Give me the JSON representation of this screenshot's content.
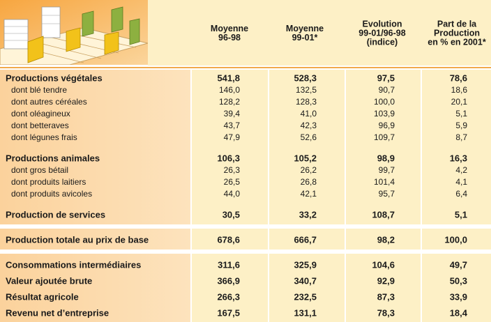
{
  "header": {
    "columns": [
      [
        "Moyenne",
        "96-98"
      ],
      [
        "Moyenne",
        "99-01*"
      ],
      [
        "Evolution",
        "99-01/96-98",
        "(indice)"
      ],
      [
        "Part de la",
        "Production",
        "en % en 2001*"
      ]
    ]
  },
  "table": {
    "sections": [
      {
        "rows": [
          {
            "label": "Productions végétales",
            "values": [
              "541,8",
              "528,3",
              "97,5",
              "78,6"
            ],
            "details": [
              {
                "label": "dont blé tendre",
                "values": [
                  "146,0",
                  "132,5",
                  "90,7",
                  "18,6"
                ]
              },
              {
                "label": "dont autres céréales",
                "values": [
                  "128,2",
                  "128,3",
                  "100,0",
                  "20,1"
                ]
              },
              {
                "label": "dont oléagineux",
                "values": [
                  "39,4",
                  "41,0",
                  "103,9",
                  "5,1"
                ]
              },
              {
                "label": "dont betteraves",
                "values": [
                  "43,7",
                  "42,3",
                  "96,9",
                  "5,9"
                ]
              },
              {
                "label": "dont légunes frais",
                "values": [
                  "47,9",
                  "52,6",
                  "109,7",
                  "8,7"
                ]
              }
            ]
          },
          {
            "label": "Productions animales",
            "values": [
              "106,3",
              "105,2",
              "98,9",
              "16,3"
            ],
            "details": [
              {
                "label": "dont gros bétail",
                "values": [
                  "26,3",
                  "26,2",
                  "99,7",
                  "4,2"
                ]
              },
              {
                "label": "dont produits laitiers",
                "values": [
                  "26,5",
                  "26,8",
                  "101,4",
                  "4,1"
                ]
              },
              {
                "label": "dont produits avicoles",
                "values": [
                  "44,0",
                  "42,1",
                  "95,7",
                  "6,4"
                ]
              }
            ]
          },
          {
            "label": "Production de services",
            "values": [
              "30,5",
              "33,2",
              "108,7",
              "5,1"
            ]
          }
        ]
      },
      {
        "rows": [
          {
            "label": "Production totale au prix de base",
            "values": [
              "678,6",
              "666,7",
              "98,2",
              "100,0"
            ]
          }
        ]
      },
      {
        "rows": [
          {
            "label": "Consommations intermédiaires",
            "values": [
              "311,6",
              "325,9",
              "104,6",
              "49,7"
            ]
          },
          {
            "label": "Valeur ajoutée brute",
            "values": [
              "366,9",
              "340,7",
              "92,9",
              "50,3"
            ]
          },
          {
            "label": "Résultat agricole",
            "values": [
              "266,3",
              "232,5",
              "87,3",
              "33,9"
            ]
          },
          {
            "label": "Revenu net d’entreprise",
            "values": [
              "167,5",
              "131,1",
              "78,3",
              "18,4"
            ]
          }
        ]
      }
    ]
  }
}
